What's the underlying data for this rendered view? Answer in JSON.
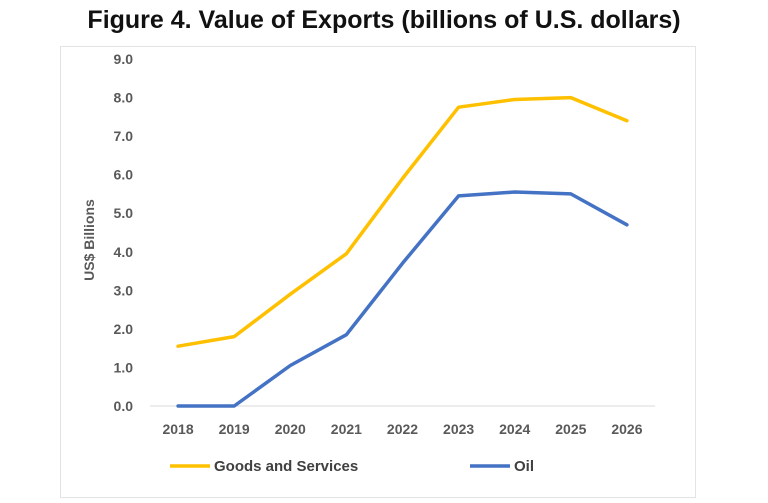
{
  "chart_data": {
    "type": "line",
    "title": "Figure 4. Value of Exports (billions of U.S. dollars)",
    "ylabel": "US$ Billions",
    "xlabel": "",
    "x": [
      "2018",
      "2019",
      "2020",
      "2021",
      "2022",
      "2023",
      "2024",
      "2025",
      "2026"
    ],
    "ylim": [
      0,
      9
    ],
    "yticks": [
      "0.0",
      "1.0",
      "2.0",
      "3.0",
      "4.0",
      "5.0",
      "6.0",
      "7.0",
      "8.0",
      "9.0"
    ],
    "grid": false,
    "legend_position": "bottom",
    "series": [
      {
        "name": "Goods and Services",
        "color": "#FFC000",
        "values": [
          1.55,
          1.8,
          2.9,
          3.95,
          5.9,
          7.75,
          7.95,
          8.0,
          7.4
        ]
      },
      {
        "name": "Oil",
        "color": "#4472C4",
        "values": [
          0.0,
          0.0,
          1.05,
          1.85,
          3.7,
          5.45,
          5.55,
          5.5,
          4.7
        ]
      }
    ]
  }
}
